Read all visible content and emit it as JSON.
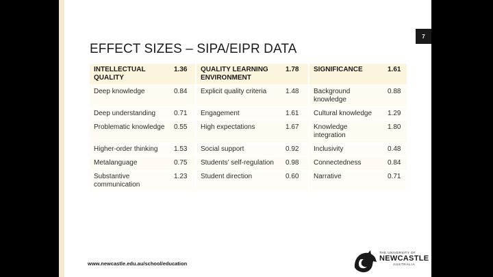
{
  "slide": {
    "number": "7",
    "title": "EFFECT SIZES – SIPA/EIPR DATA",
    "footer_url": "www.newcastle.edu.au/school/education"
  },
  "logo": {
    "line1": "THE UNIVERSITY OF",
    "line2": "NEWCASTLE",
    "line3": "AUSTRALIA"
  },
  "table": {
    "header": [
      {
        "label": "INTELLECTUAL QUALITY",
        "value": "1.36"
      },
      {
        "label": "QUALITY LEARNING ENVIRONMENT",
        "value": "1.78"
      },
      {
        "label": "SIGNIFICANCE",
        "value": "1.61"
      }
    ],
    "rows": [
      [
        {
          "label": "Deep knowledge",
          "value": "0.84"
        },
        {
          "label": "Explicit  quality criteria",
          "value": "1.48"
        },
        {
          "label": "Background knowledge",
          "value": "0.88"
        }
      ],
      [
        {
          "label": "Deep understanding",
          "value": "0.71"
        },
        {
          "label": "Engagement",
          "value": "1.61"
        },
        {
          "label": "Cultural knowledge",
          "value": "1.29"
        }
      ],
      [
        {
          "label": "Problematic knowledge",
          "value": "0.55"
        },
        {
          "label": "High expectations",
          "value": "1.67"
        },
        {
          "label": "Knowledge integration",
          "value": "1.80"
        }
      ],
      [
        {
          "label": "Higher-order thinking",
          "value": "1.53"
        },
        {
          "label": "Social support",
          "value": "0.92"
        },
        {
          "label": "Inclusivity",
          "value": "0.48"
        }
      ],
      [
        {
          "label": "Metalanguage",
          "value": "0.75"
        },
        {
          "label": "Students’ self-regulation",
          "value": "0.98"
        },
        {
          "label": "Connectedness",
          "value": "0.84"
        }
      ],
      [
        {
          "label": "Substantive communication",
          "value": "1.23"
        },
        {
          "label": "Student direction",
          "value": "0.60"
        },
        {
          "label": "Narrative",
          "value": "0.71"
        }
      ]
    ]
  }
}
